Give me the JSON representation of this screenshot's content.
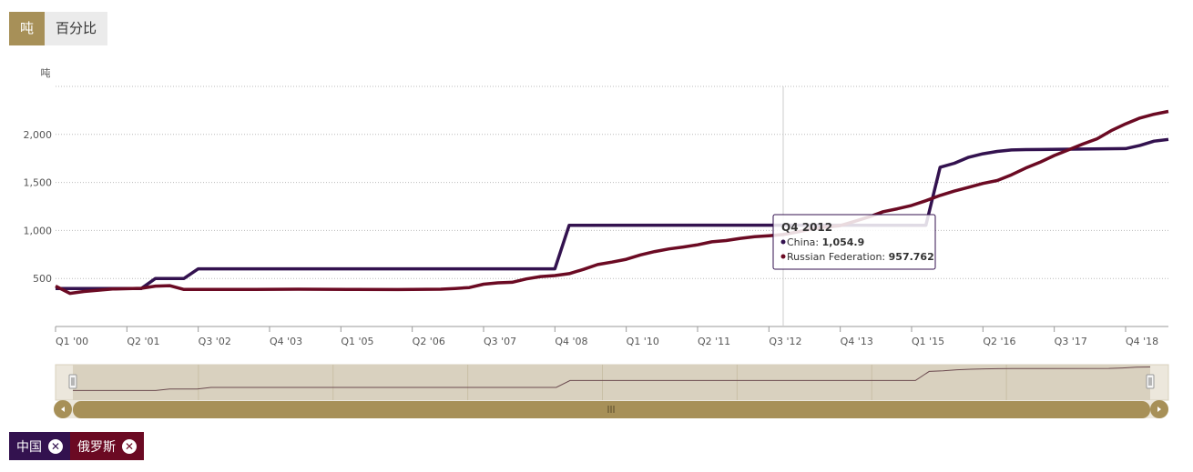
{
  "unit_toggle": {
    "options": [
      "吨",
      "百分比"
    ],
    "selected": "吨"
  },
  "colors": {
    "accent": "#a79058",
    "china": "#33124f",
    "russia": "#6b0a23",
    "navigator_bg": "#d9d1bf",
    "tooltip_border": "#33124f"
  },
  "chart_data": {
    "type": "line",
    "ylabel": "吨",
    "yticks": [
      500,
      1000,
      1500,
      2000
    ],
    "ytick_labels": [
      "500",
      "1,000",
      "1,500",
      "2,000"
    ],
    "ylim": [
      0,
      2500
    ],
    "xtick_labels": [
      "Q1 '00",
      "Q2 '01",
      "Q3 '02",
      "Q4 '03",
      "Q1 '05",
      "Q2 '06",
      "Q3 '07",
      "Q4 '08",
      "Q1 '10",
      "Q2 '11",
      "Q3 '12",
      "Q4 '13",
      "Q1 '15",
      "Q2 '16",
      "Q3 '17",
      "Q4 '18"
    ],
    "x_domain": [
      "Q1 2000",
      "Q3 2019"
    ],
    "grid": "horizontal dotted",
    "series": [
      {
        "name": "China",
        "color": "#33124f",
        "points": [
          [
            "Q1 2000",
            395
          ],
          [
            "Q4 2000",
            395
          ],
          [
            "Q1 2001",
            395
          ],
          [
            "Q3 2001",
            395
          ],
          [
            "Q4 2001",
            500
          ],
          [
            "Q1 2002",
            500
          ],
          [
            "Q2 2002",
            500
          ],
          [
            "Q3 2002",
            600
          ],
          [
            "Q4 2008",
            600
          ],
          [
            "Q1 2009",
            1054
          ],
          [
            "Q4 2012",
            1054.9
          ],
          [
            "Q2 2015",
            1054
          ],
          [
            "Q3 2015",
            1658
          ],
          [
            "Q4 2015",
            1700
          ],
          [
            "Q1 2016",
            1762
          ],
          [
            "Q2 2016",
            1798
          ],
          [
            "Q3 2016",
            1823
          ],
          [
            "Q4 2016",
            1838
          ],
          [
            "Q1 2017",
            1842
          ],
          [
            "Q4 2018",
            1852
          ],
          [
            "Q1 2019",
            1885
          ],
          [
            "Q2 2019",
            1930
          ],
          [
            "Q3 2019",
            1948
          ]
        ]
      },
      {
        "name": "Russian Federation",
        "color": "#6b0a23",
        "points": [
          [
            "Q1 2000",
            420
          ],
          [
            "Q2 2000",
            345
          ],
          [
            "Q3 2000",
            365
          ],
          [
            "Q1 2001",
            390
          ],
          [
            "Q3 2001",
            398
          ],
          [
            "Q4 2001",
            420
          ],
          [
            "Q1 2002",
            425
          ],
          [
            "Q2 2002",
            385
          ],
          [
            "Q3 2003",
            385
          ],
          [
            "Q2 2004",
            388
          ],
          [
            "Q2 2005",
            385
          ],
          [
            "Q1 2006",
            384
          ],
          [
            "Q4 2006",
            388
          ],
          [
            "Q1 2007",
            396
          ],
          [
            "Q2 2007",
            405
          ],
          [
            "Q3 2007",
            440
          ],
          [
            "Q4 2007",
            455
          ],
          [
            "Q1 2008",
            460
          ],
          [
            "Q2 2008",
            495
          ],
          [
            "Q3 2008",
            520
          ],
          [
            "Q4 2008",
            530
          ],
          [
            "Q1 2009",
            550
          ],
          [
            "Q2 2009",
            595
          ],
          [
            "Q3 2009",
            645
          ],
          [
            "Q4 2009",
            670
          ],
          [
            "Q1 2010",
            700
          ],
          [
            "Q2 2010",
            745
          ],
          [
            "Q3 2010",
            780
          ],
          [
            "Q4 2010",
            808
          ],
          [
            "Q1 2011",
            828
          ],
          [
            "Q2 2011",
            850
          ],
          [
            "Q3 2011",
            882
          ],
          [
            "Q4 2011",
            895
          ],
          [
            "Q1 2012",
            918
          ],
          [
            "Q2 2012",
            935
          ],
          [
            "Q3 2012",
            945
          ],
          [
            "Q4 2012",
            957.762
          ],
          [
            "Q1 2013",
            985
          ],
          [
            "Q2 2013",
            1015
          ],
          [
            "Q3 2013",
            1035
          ],
          [
            "Q4 2013",
            1050
          ],
          [
            "Q1 2014",
            1095
          ],
          [
            "Q2 2014",
            1140
          ],
          [
            "Q3 2014",
            1195
          ],
          [
            "Q4 2014",
            1225
          ],
          [
            "Q1 2015",
            1260
          ],
          [
            "Q2 2015",
            1310
          ],
          [
            "Q3 2015",
            1365
          ],
          [
            "Q4 2015",
            1410
          ],
          [
            "Q1 2016",
            1450
          ],
          [
            "Q2 2016",
            1490
          ],
          [
            "Q3 2016",
            1520
          ],
          [
            "Q4 2016",
            1580
          ],
          [
            "Q1 2017",
            1650
          ],
          [
            "Q2 2017",
            1710
          ],
          [
            "Q3 2017",
            1780
          ],
          [
            "Q4 2017",
            1840
          ],
          [
            "Q1 2018",
            1900
          ],
          [
            "Q2 2018",
            1955
          ],
          [
            "Q3 2018",
            2040
          ],
          [
            "Q4 2018",
            2110
          ],
          [
            "Q1 2019",
            2170
          ],
          [
            "Q2 2019",
            2210
          ],
          [
            "Q3 2019",
            2240
          ]
        ]
      }
    ],
    "tooltip": {
      "title": "Q4 2012",
      "rows": [
        {
          "series": "China",
          "value": "1,054.9"
        },
        {
          "series": "Russian Federation",
          "value": "957.762"
        }
      ]
    }
  },
  "legend": {
    "items": [
      {
        "label": "中国",
        "color": "#33124f"
      },
      {
        "label": "俄罗斯",
        "color": "#6b0a23"
      }
    ]
  }
}
